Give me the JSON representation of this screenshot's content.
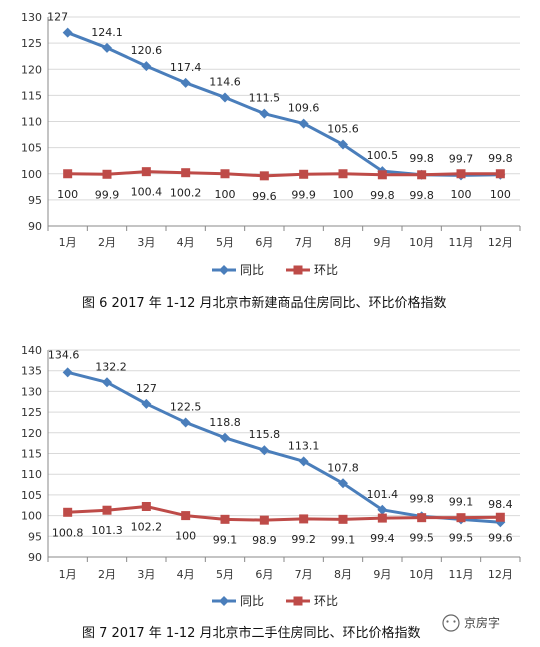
{
  "colors": {
    "series_yoy": "#4a7ebb",
    "series_mom": "#be4b48",
    "grid": "#d9d9d9",
    "axis": "#888888"
  },
  "watermark": {
    "text": "京房字",
    "icon": "wechat-icon"
  },
  "chart_data": [
    {
      "type": "line",
      "caption": "图 6 2017 年 1-12 月北京市新建商品住房同比、环比价格指数",
      "categories": [
        "1月",
        "2月",
        "3月",
        "4月",
        "5月",
        "6月",
        "7月",
        "8月",
        "9月",
        "10月",
        "11月",
        "12月"
      ],
      "ylim": [
        90,
        130
      ],
      "yticks": [
        90,
        95,
        100,
        105,
        110,
        115,
        120,
        125,
        130
      ],
      "legend_position": "bottom",
      "grid": true,
      "series": [
        {
          "name": "同比",
          "marker": "diamond",
          "values": [
            127,
            124.1,
            120.6,
            117.4,
            114.6,
            111.5,
            109.6,
            105.6,
            100.5,
            99.8,
            99.7,
            99.8
          ],
          "labels": [
            "127",
            "124.1",
            "120.6",
            "117.4",
            "114.6",
            "111.5",
            "109.6",
            "105.6",
            "100.5",
            "99.8",
            "99.7",
            "99.8"
          ]
        },
        {
          "name": "环比",
          "marker": "square",
          "values": [
            100,
            99.9,
            100.4,
            100.2,
            100,
            99.6,
            99.9,
            100,
            99.8,
            99.8,
            100,
            100
          ],
          "labels": [
            "100",
            "99.9",
            "100.4",
            "100.2",
            "100",
            "99.6",
            "99.9",
            "100",
            "99.8",
            "99.8",
            "100",
            "100"
          ]
        }
      ]
    },
    {
      "type": "line",
      "caption": "图 7 2017 年 1-12 月北京市二手住房同比、环比价格指数",
      "categories": [
        "1月",
        "2月",
        "3月",
        "4月",
        "5月",
        "6月",
        "7月",
        "8月",
        "9月",
        "10月",
        "11月",
        "12月"
      ],
      "ylim": [
        90,
        140
      ],
      "yticks": [
        90,
        95,
        100,
        105,
        110,
        115,
        120,
        125,
        130,
        135,
        140
      ],
      "legend_position": "bottom",
      "grid": true,
      "series": [
        {
          "name": "同比",
          "marker": "diamond",
          "values": [
            134.6,
            132.2,
            127,
            122.5,
            118.8,
            115.8,
            113.1,
            107.8,
            101.4,
            99.8,
            99.1,
            98.4
          ],
          "labels": [
            "134.6",
            "132.2",
            "127",
            "122.5",
            "118.8",
            "115.8",
            "113.1",
            "107.8",
            "101.4",
            "99.8",
            "99.1",
            "98.4"
          ]
        },
        {
          "name": "环比",
          "marker": "square",
          "values": [
            100.8,
            101.3,
            102.2,
            100,
            99.1,
            98.9,
            99.2,
            99.1,
            99.4,
            99.5,
            99.5,
            99.6
          ],
          "labels": [
            "100.8",
            "101.3",
            "102.2",
            "100",
            "99.1",
            "98.9",
            "99.2",
            "99.1",
            "99.4",
            "99.5",
            "99.5",
            "99.6"
          ]
        }
      ]
    }
  ]
}
